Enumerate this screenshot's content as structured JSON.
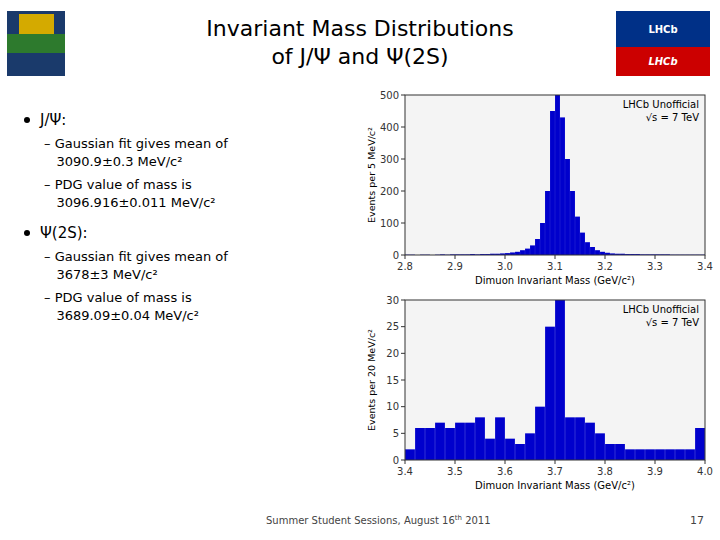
{
  "page": {
    "title": [
      "Invariant Mass Distributions",
      "of J/Ψ and Ψ(2S)"
    ],
    "logo_texts": [
      "LHCb",
      "LHCb"
    ],
    "bullets": [
      {
        "text": "J/Ψ:",
        "items": [
          "– Gaussian fit gives mean of",
          "   3090.9±0.3 MeV/c²",
          "– PDG value of mass is",
          "   3096.916±0.011 MeV/c²"
        ]
      },
      {
        "text": "Ψ(2S):",
        "items": [
          "– Gaussian fit gives mean of",
          "   3678±3 MeV/c²",
          "– PDG value of mass is",
          "   3689.09±0.04 MeV/c²"
        ]
      }
    ],
    "footer": [
      "Summer Student Sessions, August 16",
      "th",
      " 2011"
    ],
    "page_number": "17"
  },
  "chart_data": [
    {
      "type": "bar",
      "color": "#0000cc",
      "grid": false,
      "x_label": "Dimuon Invariant Mass (GeV/c²)",
      "y_label": "Events per 5 MeV/c²",
      "annotations": [
        "LHCb Unofficial",
        "√s = 7 TeV"
      ],
      "x": [
        2.805,
        2.815,
        2.825,
        2.835,
        2.845,
        2.855,
        2.865,
        2.875,
        2.885,
        2.895,
        2.905,
        2.915,
        2.925,
        2.935,
        2.945,
        2.955,
        2.965,
        2.975,
        2.985,
        2.995,
        3.005,
        3.015,
        3.025,
        3.035,
        3.045,
        3.055,
        3.065,
        3.075,
        3.085,
        3.095,
        3.105,
        3.115,
        3.125,
        3.135,
        3.145,
        3.155,
        3.165,
        3.175,
        3.185,
        3.195,
        3.205,
        3.215,
        3.225,
        3.235,
        3.245,
        3.255,
        3.265,
        3.275,
        3.285,
        3.295,
        3.305,
        3.315,
        3.325,
        3.335,
        3.345,
        3.355,
        3.365,
        3.375,
        3.385,
        3.395
      ],
      "values": [
        1,
        1,
        0,
        1,
        1,
        0,
        1,
        2,
        1,
        2,
        2,
        2,
        2,
        3,
        2,
        3,
        3,
        4,
        4,
        5,
        6,
        8,
        10,
        15,
        20,
        30,
        50,
        100,
        200,
        450,
        500,
        430,
        300,
        200,
        120,
        70,
        40,
        25,
        15,
        10,
        7,
        5,
        4,
        4,
        3,
        3,
        3,
        2,
        2,
        2,
        2,
        2,
        2,
        1,
        1,
        1,
        1,
        1,
        1,
        1
      ],
      "xlim": [
        2.8,
        3.4
      ],
      "xticks": [
        2.8,
        2.9,
        {
          "value": 3.0,
          "label": "3.0"
        },
        3.1,
        3.2,
        3.3,
        3.4
      ],
      "ylim": [
        0,
        500
      ],
      "yticks": [
        0,
        100,
        200,
        300,
        400,
        500
      ]
    },
    {
      "type": "bar",
      "color": "#0000cc",
      "grid": false,
      "x_label": "Dimuon Invariant Mass (GeV/c²)",
      "y_label": "Events per 20 MeV/c²",
      "annotations": [
        "LHCb Unofficial",
        "√s = 7 TeV"
      ],
      "x": [
        3.41,
        3.43,
        3.45,
        3.47,
        3.49,
        3.51,
        3.53,
        3.55,
        3.57,
        3.59,
        3.61,
        3.63,
        3.65,
        3.67,
        3.69,
        3.71,
        3.73,
        3.75,
        3.77,
        3.79,
        3.81,
        3.83,
        3.85,
        3.87,
        3.89,
        3.91,
        3.93,
        3.95,
        3.97,
        3.99
      ],
      "values": [
        2,
        6,
        6,
        7,
        6,
        7,
        7,
        8,
        4,
        8,
        4,
        3,
        5,
        10,
        25,
        30,
        8,
        8,
        7,
        5,
        3,
        3,
        2,
        2,
        2,
        2,
        2,
        2,
        2,
        6
      ],
      "xlim": [
        3.4,
        4.0
      ],
      "xticks": [
        3.4,
        3.5,
        3.6,
        3.7,
        3.8,
        3.9,
        {
          "value": 4.0,
          "label": "4.0"
        }
      ],
      "ylim": [
        0,
        30
      ],
      "yticks": [
        0,
        5,
        10,
        15,
        20,
        25,
        30
      ]
    }
  ]
}
